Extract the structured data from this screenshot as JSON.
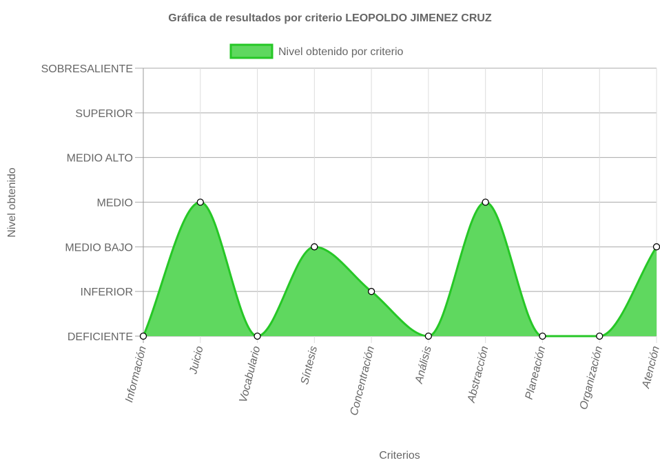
{
  "chart_data": {
    "type": "area",
    "title": "Gráfica de resultados por criterio LEOPOLDO JIMENEZ CRUZ",
    "xlabel": "Criterios",
    "ylabel": "Nivel obtenido",
    "categories": [
      "Información",
      "Juicio",
      "Vocabulario",
      "Síntesis",
      "Concentración",
      "Análisis",
      "Abstracción",
      "Planeación",
      "Organización",
      "Atención"
    ],
    "y_levels": [
      "DEFICIENTE",
      "INFERIOR",
      "MEDIO BAJO",
      "MEDIO",
      "MEDIO ALTO",
      "SUPERIOR",
      "SOBRESALIENTE"
    ],
    "ylim": [
      0,
      6
    ],
    "series": [
      {
        "name": "Nivel obtenido por criterio",
        "values": [
          0,
          3,
          0,
          2,
          1,
          0,
          3,
          0,
          0,
          2
        ],
        "color": "#26c726",
        "fill": "#5fd85f"
      }
    ],
    "grid": true,
    "legend_position": "top"
  }
}
